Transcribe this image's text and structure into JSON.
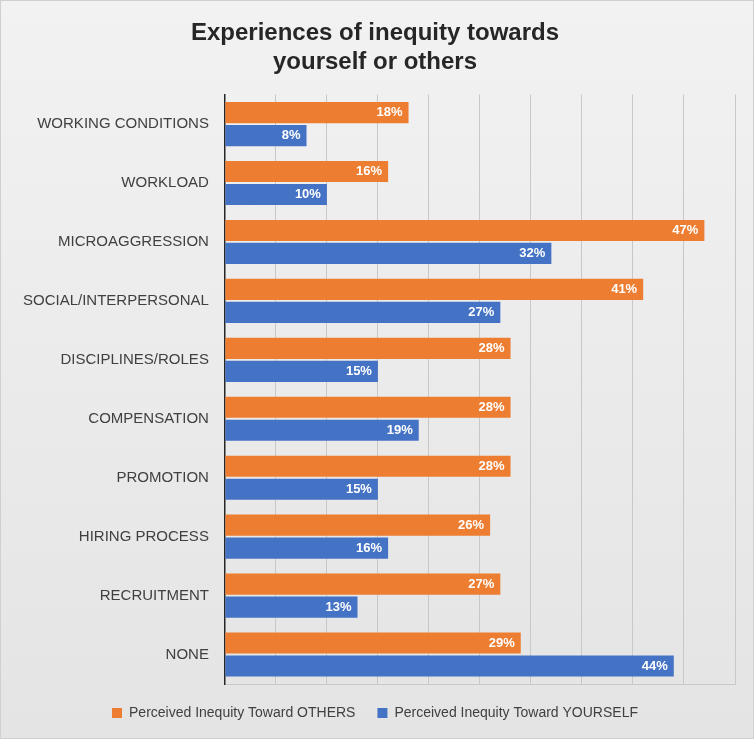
{
  "chart_data": {
    "type": "bar",
    "title": [
      "Experiences of inequity towards",
      "yourself or others"
    ],
    "orientation": "horizontal",
    "categories": [
      "WORKING CONDITIONS",
      "WORKLOAD",
      "MICROAGGRESSION",
      "SOCIAL/INTERPERSONAL",
      "DISCIPLINES/ROLES",
      "COMPENSATION",
      "PROMOTION",
      "HIRING PROCESS",
      "RECRUITMENT",
      "NONE"
    ],
    "series": [
      {
        "name": "Perceived Inequity Toward OTHERS",
        "color": "#ed7d31",
        "values": [
          18,
          16,
          47,
          41,
          28,
          28,
          28,
          26,
          27,
          29
        ],
        "value_labels": [
          "18%",
          "16%",
          "47%",
          "41%",
          "28%",
          "28%",
          "28%",
          "26%",
          "27%",
          "29%"
        ]
      },
      {
        "name": "Perceived Inequity Toward YOURSELF",
        "color": "#4472c4",
        "values": [
          8,
          10,
          32,
          27,
          15,
          19,
          15,
          16,
          13,
          44
        ],
        "value_labels": [
          "8%",
          "10%",
          "32%",
          "27%",
          "15%",
          "19%",
          "15%",
          "16%",
          "13%",
          "44%"
        ]
      }
    ],
    "xlim": [
      0,
      50
    ],
    "xticks": [
      0,
      5,
      10,
      15,
      20,
      25,
      30,
      35,
      40,
      45,
      50
    ],
    "tick_labels": "y",
    "grid": true,
    "legend": "bottom",
    "data_labels": true
  }
}
